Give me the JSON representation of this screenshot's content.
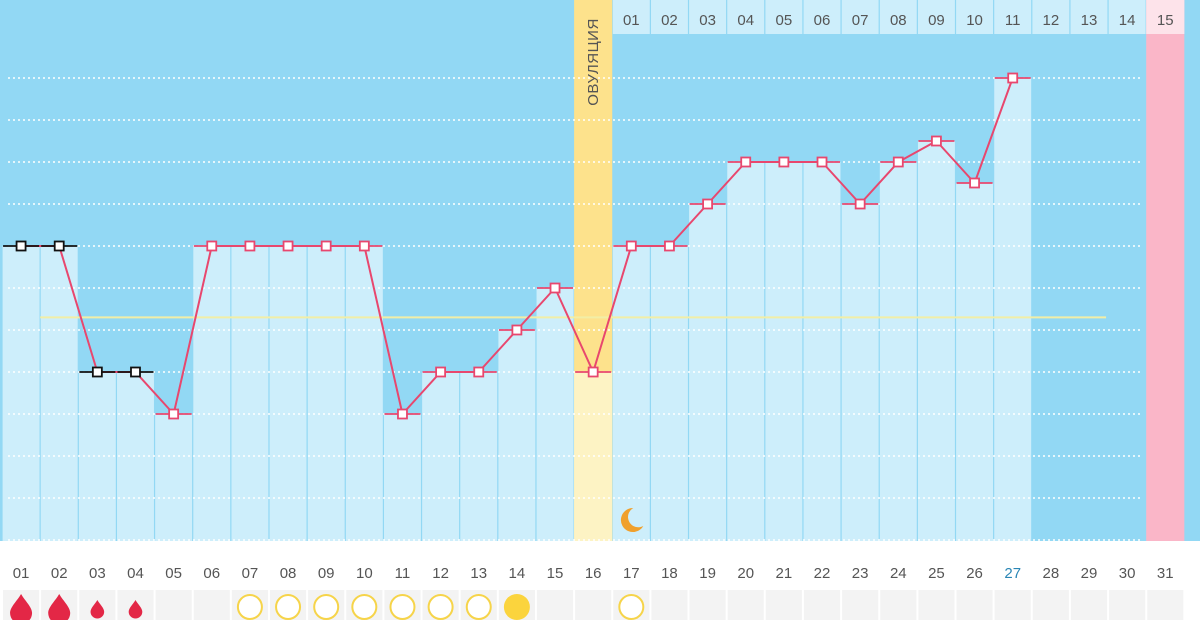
{
  "chart_data": {
    "type": "line",
    "title": "",
    "xlabel": "",
    "ylabel": "",
    "ovulation_label": "ОВУЛЯЦИЯ",
    "ovulation_day": 16,
    "highlight_day": 27,
    "period_start_day": 31,
    "bbt_grid_levels": 13,
    "coverline_level": 6.3,
    "days": [
      "01",
      "02",
      "03",
      "04",
      "05",
      "06",
      "07",
      "08",
      "09",
      "10",
      "11",
      "12",
      "13",
      "14",
      "15",
      "16",
      "17",
      "18",
      "19",
      "20",
      "21",
      "22",
      "23",
      "24",
      "25",
      "26",
      "27",
      "28",
      "29",
      "30",
      "31"
    ],
    "luteal_phase_labels": [
      "01",
      "02",
      "03",
      "04",
      "05",
      "06",
      "07",
      "08",
      "09",
      "10",
      "11",
      "12",
      "13",
      "14",
      "15"
    ],
    "series": [
      {
        "values": [
          8,
          8,
          5,
          5,
          4,
          8,
          8,
          8,
          8,
          8,
          4,
          5,
          5,
          6,
          7,
          5,
          8,
          8,
          9,
          10,
          10,
          10,
          9,
          10,
          10.5,
          9.5,
          12,
          null,
          null,
          null,
          null
        ]
      }
    ],
    "markers": [
      "drop-large",
      "drop-large",
      "drop-small",
      "drop-small",
      "",
      "",
      "circle-outline",
      "circle-outline",
      "circle-outline",
      "circle-outline",
      "circle-outline",
      "circle-outline",
      "circle-outline",
      "circle-filled",
      "",
      "",
      "circle-outline",
      "",
      "",
      "",
      "",
      "",
      "",
      "",
      "",
      "",
      "",
      "",
      "",
      "",
      ""
    ],
    "colors": {
      "bg_blue": "#92d8f4",
      "bar_light": "#cdeefb",
      "grid": "#ffffff",
      "line": "#e8476e",
      "excluded_point": "#111111",
      "coverline": "#f2eea6",
      "ovulation_band": "#fde28c",
      "ovulation_band_light": "#fdf3c4",
      "period_band": "#fab6c8",
      "period_band_light": "#fde3ea",
      "day_label": "#555555",
      "highlight_day_label": "#2a86b5",
      "drop": "#e32746",
      "sun_outline": "#f6d44a",
      "sun_fill": "#fbd43d",
      "moon": "#f0a02c"
    },
    "icons": {
      "sleep": "crescent-moon-icon",
      "menstruation": "blood-drop-icon",
      "mucus": "circle-icon"
    }
  }
}
